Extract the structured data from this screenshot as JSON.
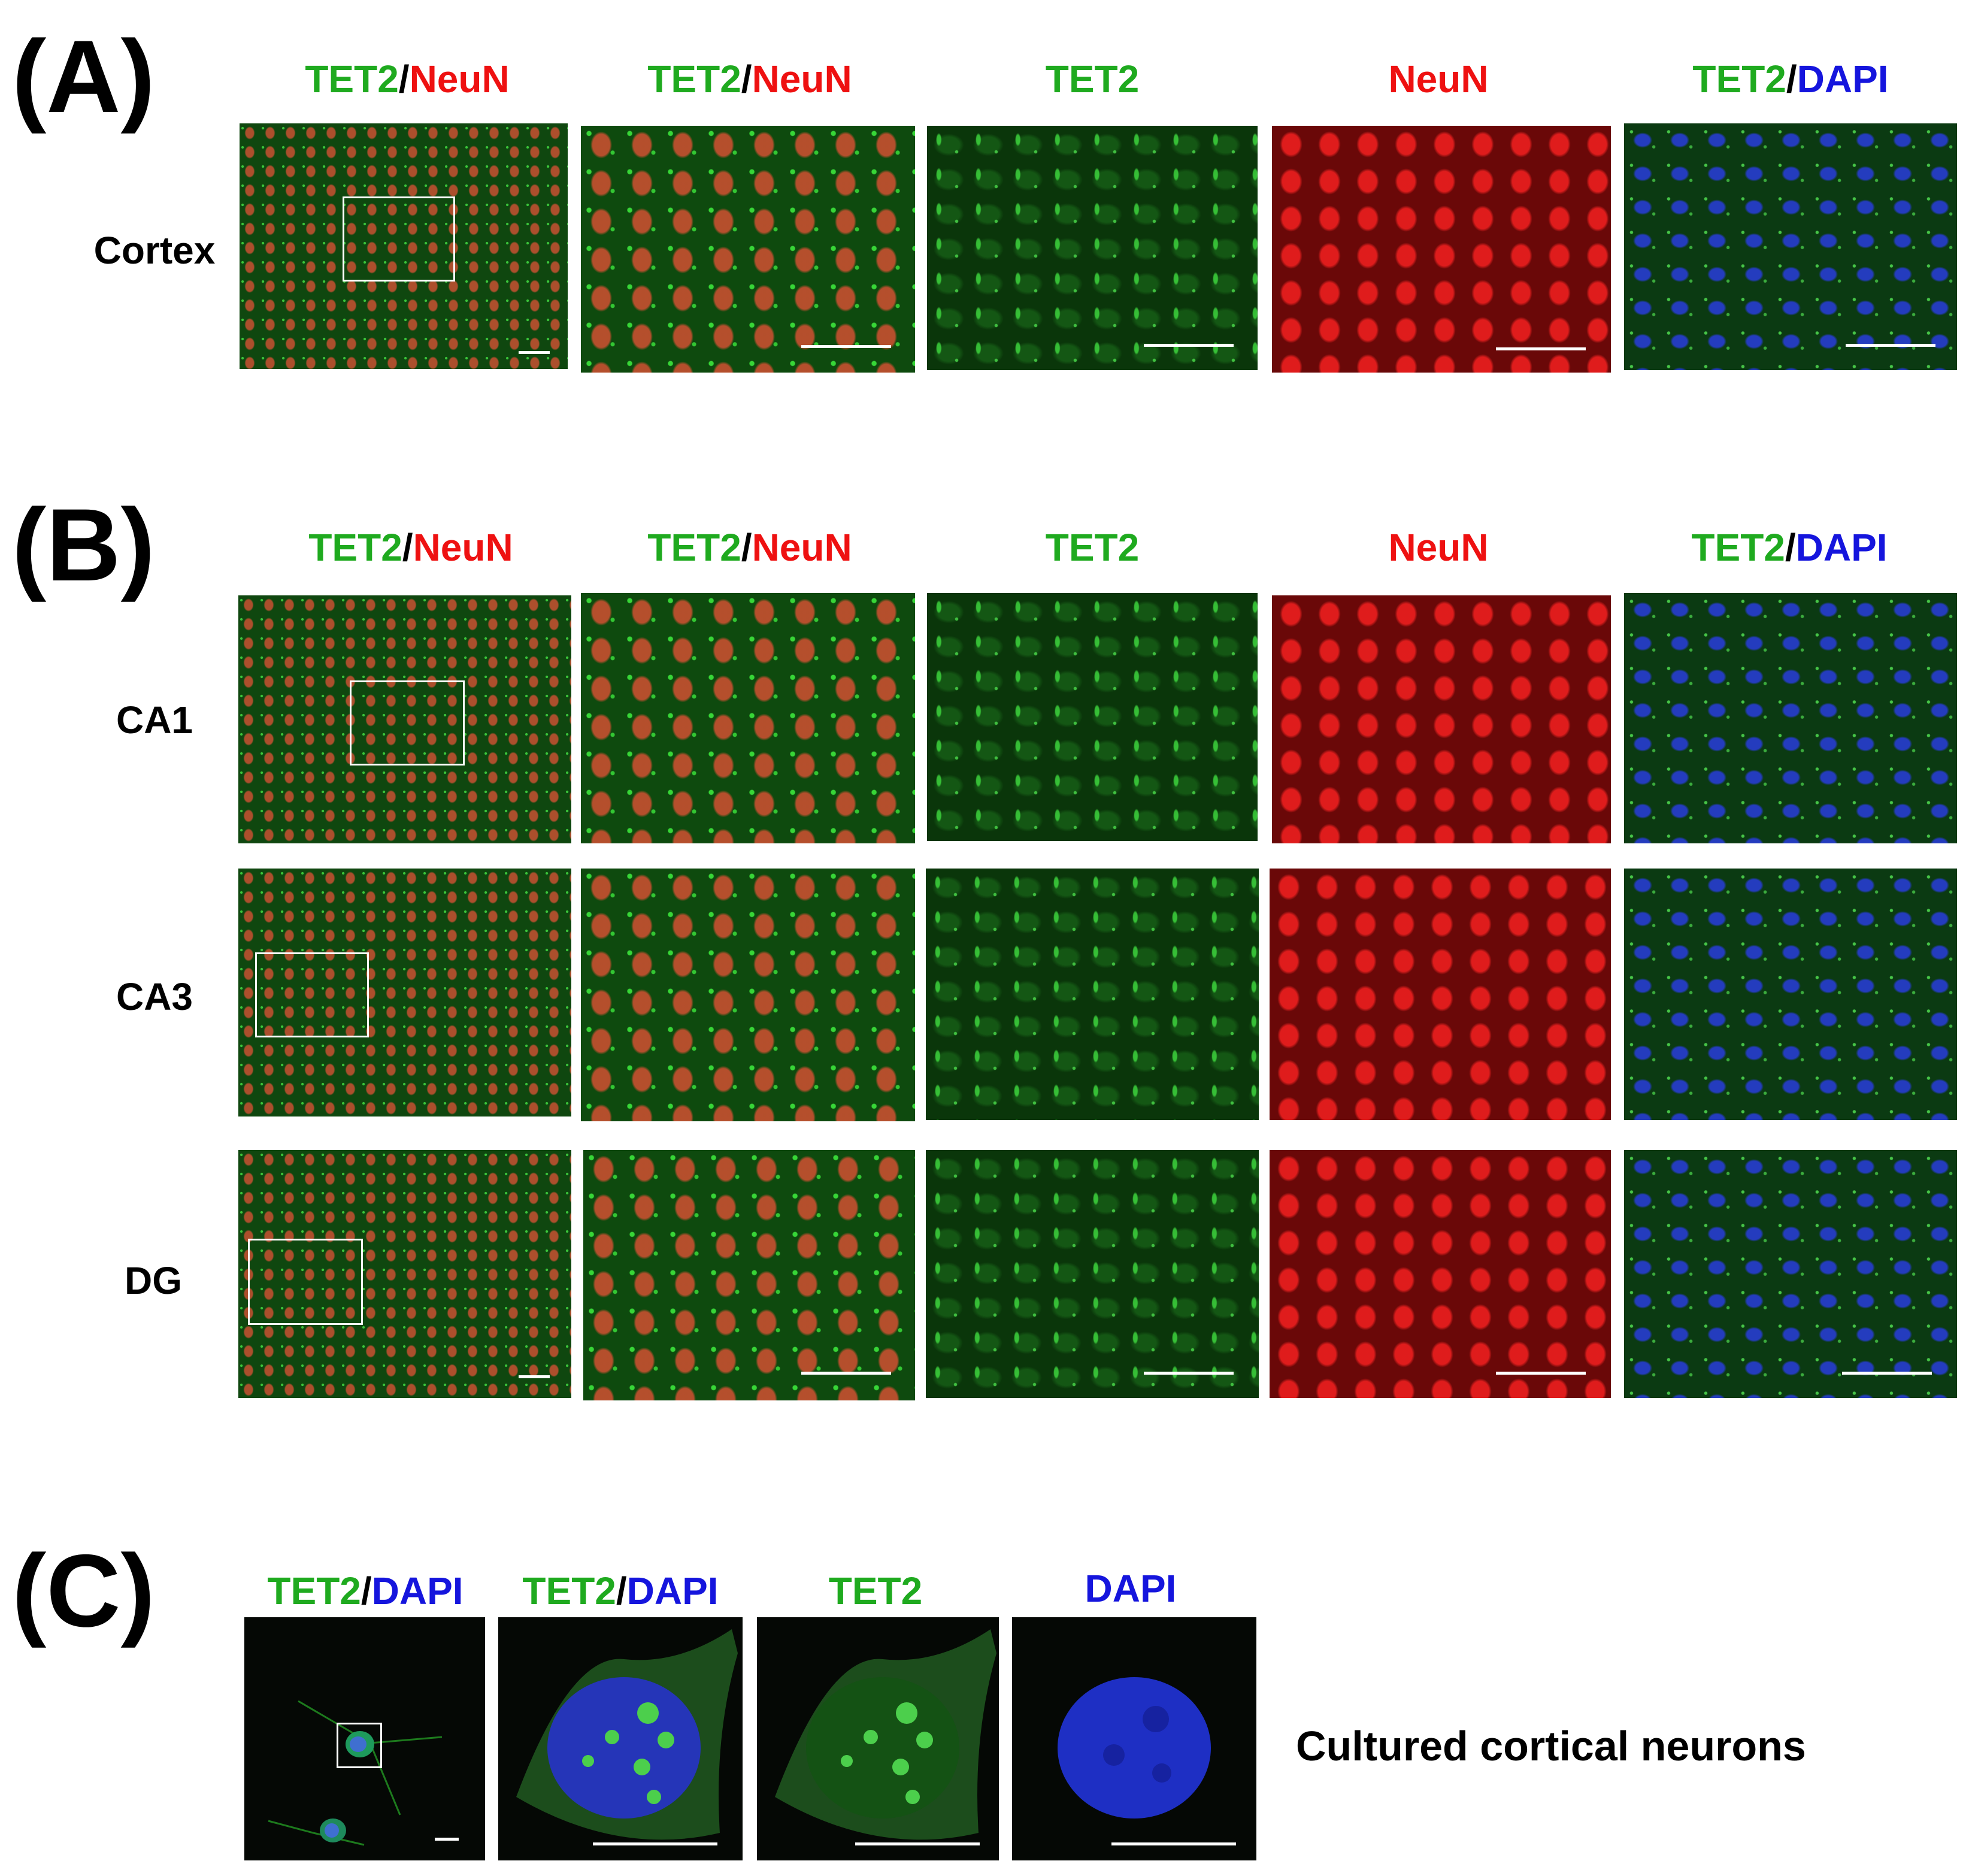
{
  "panels": {
    "a": {
      "letter": "(A)",
      "titles": [
        {
          "p1": "TET2",
          "sep": "/",
          "p2": "NeuN"
        },
        {
          "p1": "TET2",
          "sep": "/",
          "p2": "NeuN"
        },
        {
          "p1": "TET2"
        },
        {
          "p1": "NeuN"
        },
        {
          "p1": "TET2",
          "sep": "/",
          "p2": "DAPI"
        }
      ],
      "rows": [
        "Cortex"
      ]
    },
    "b": {
      "letter": "(B)",
      "titles": [
        {
          "p1": "TET2",
          "sep": "/",
          "p2": "NeuN"
        },
        {
          "p1": "TET2",
          "sep": "/",
          "p2": "NeuN"
        },
        {
          "p1": "TET2"
        },
        {
          "p1": "NeuN"
        },
        {
          "p1": "TET2",
          "sep": "/",
          "p2": "DAPI"
        }
      ],
      "rows": [
        "CA1",
        "CA3",
        "DG"
      ]
    },
    "c": {
      "letter": "(C)",
      "titles": [
        {
          "p1": "TET2",
          "sep": "/",
          "p2": "DAPI"
        },
        {
          "p1": "TET2",
          "sep": "/",
          "p2": "DAPI"
        },
        {
          "p1": "TET2"
        },
        {
          "p1": "DAPI"
        }
      ],
      "caption": "Cultured cortical neurons"
    }
  },
  "colors": {
    "tet2": "#1faa1f",
    "neun": "#ee1111",
    "dapi": "#1515dd",
    "separator": "#000000"
  }
}
